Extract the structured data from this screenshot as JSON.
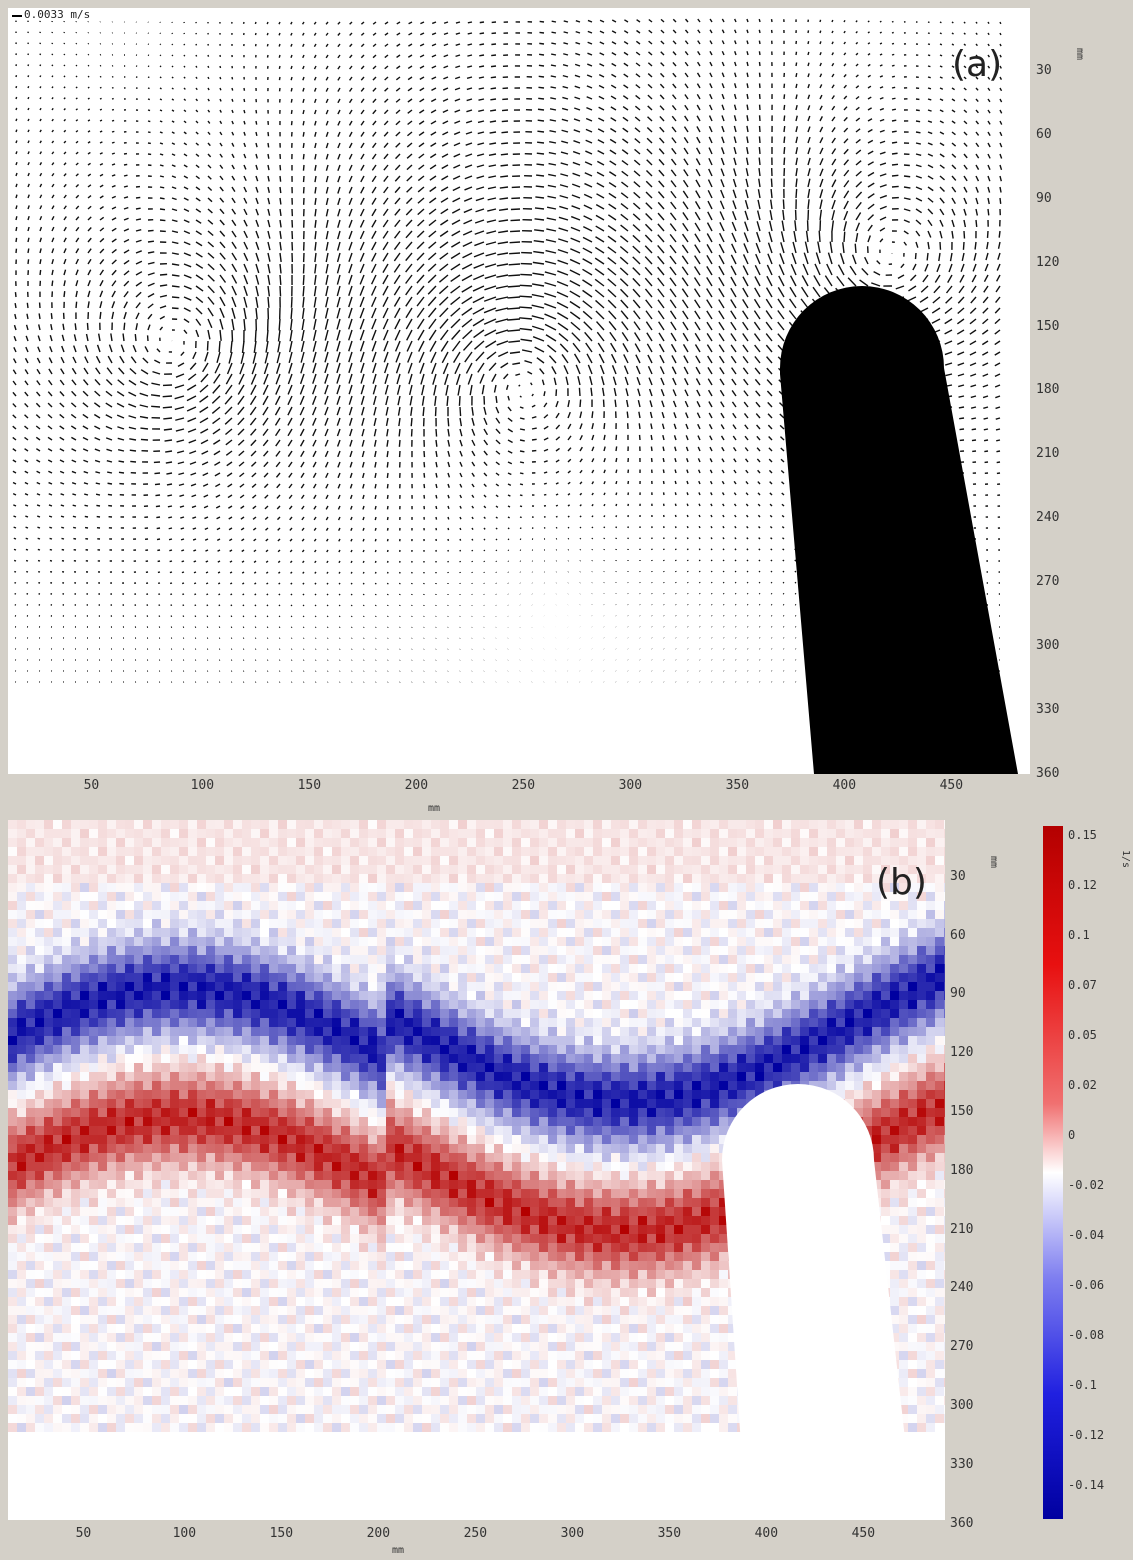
{
  "panels": {
    "a": {
      "label": "(a)",
      "scale_text": "0.0033 m/s",
      "x_unit": "mm",
      "y_unit": "mm"
    },
    "b": {
      "label": "(b)",
      "x_unit": "mm",
      "y_unit": "mm",
      "colorbar_unit": "1/s"
    }
  },
  "chart_data": [
    {
      "type": "vector field",
      "title": "(a)",
      "xlabel": "mm",
      "ylabel": "mm",
      "x_ticks": [
        50,
        100,
        150,
        200,
        250,
        300,
        350,
        400,
        450
      ],
      "y_ticks": [
        30,
        60,
        90,
        120,
        150,
        180,
        210,
        240,
        270,
        300,
        330,
        360
      ],
      "xlim": [
        10,
        480
      ],
      "ylim": [
        360,
        0
      ],
      "reference_vector": "0.0033 m/s",
      "obstacle": "black rounded cylinder from x≈380 to 440 mm, y≈140 to 360 mm",
      "grid": false
    },
    {
      "type": "heatmap",
      "title": "(b)",
      "xlabel": "mm",
      "ylabel": "mm",
      "x_ticks": [
        50,
        100,
        150,
        200,
        250,
        300,
        350,
        400,
        450
      ],
      "y_ticks": [
        30,
        60,
        90,
        120,
        150,
        180,
        210,
        240,
        270,
        300,
        330,
        360
      ],
      "colorbar_ticks": [
        "0.15",
        "0.12",
        "0.1",
        "0.07",
        "0.05",
        "0.02",
        "0",
        "-0.02",
        "-0.04",
        "-0.06",
        "-0.08",
        "-0.1",
        "-0.12",
        "-0.14"
      ],
      "colormap": [
        "#0000a0",
        "#ffffff",
        "#b30000"
      ],
      "range": [
        -0.15,
        0.15
      ],
      "grid": false
    }
  ]
}
